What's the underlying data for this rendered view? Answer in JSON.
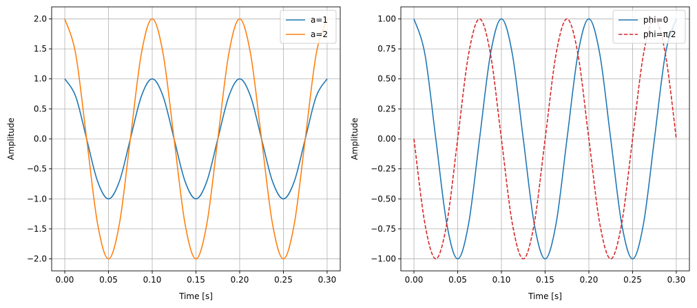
{
  "chart_data": [
    {
      "type": "line",
      "title": "",
      "xlabel": "Time [s]",
      "ylabel": "Amplitude",
      "xlim": [
        -0.015,
        0.315
      ],
      "ylim": [
        -2.2,
        2.2
      ],
      "xticks": [
        0.0,
        0.05,
        0.1,
        0.15,
        0.2,
        0.25,
        0.3
      ],
      "xtick_labels": [
        "0.00",
        "0.05",
        "0.10",
        "0.15",
        "0.20",
        "0.25",
        "0.30"
      ],
      "yticks": [
        -2.0,
        -1.5,
        -1.0,
        -0.5,
        0.0,
        0.5,
        1.0,
        1.5,
        2.0
      ],
      "ytick_labels": [
        "−2.0",
        "−1.5",
        "−1.0",
        "−0.5",
        "0.0",
        "0.5",
        "1.0",
        "1.5",
        "2.0"
      ],
      "grid": true,
      "legend_position": "top-right",
      "series": [
        {
          "name": "a=1",
          "color": "#1f77b4",
          "dash": "solid",
          "x": [
            0.0,
            0.0125,
            0.025,
            0.0375,
            0.05,
            0.0625,
            0.075,
            0.0875,
            0.1,
            0.1125,
            0.125,
            0.1375,
            0.15,
            0.1625,
            0.175,
            0.1875,
            0.2,
            0.2125,
            0.225,
            0.2375,
            0.25,
            0.2625,
            0.275,
            0.2875,
            0.3
          ],
          "y": [
            1.0,
            0.707,
            0.0,
            -0.707,
            -1.0,
            -0.707,
            0.0,
            0.707,
            1.0,
            0.707,
            0.0,
            -0.707,
            -1.0,
            -0.707,
            0.0,
            0.707,
            1.0,
            0.707,
            0.0,
            -0.707,
            -1.0,
            -0.707,
            0.0,
            0.707,
            1.0
          ]
        },
        {
          "name": "a=2",
          "color": "#ff7f0e",
          "dash": "solid",
          "x": [
            0.0,
            0.0125,
            0.025,
            0.0375,
            0.05,
            0.0625,
            0.075,
            0.0875,
            0.1,
            0.1125,
            0.125,
            0.1375,
            0.15,
            0.1625,
            0.175,
            0.1875,
            0.2,
            0.2125,
            0.225,
            0.2375,
            0.25,
            0.2625,
            0.275,
            0.2875,
            0.3
          ],
          "y": [
            2.0,
            1.414,
            0.0,
            -1.414,
            -2.0,
            -1.414,
            0.0,
            1.414,
            2.0,
            1.414,
            0.0,
            -1.414,
            -2.0,
            -1.414,
            0.0,
            1.414,
            2.0,
            1.414,
            0.0,
            -1.414,
            -2.0,
            -1.414,
            0.0,
            1.414,
            2.0
          ]
        }
      ]
    },
    {
      "type": "line",
      "title": "",
      "xlabel": "Time [s]",
      "ylabel": "Amplitude",
      "xlim": [
        -0.015,
        0.315
      ],
      "ylim": [
        -1.1,
        1.1
      ],
      "xticks": [
        0.0,
        0.05,
        0.1,
        0.15,
        0.2,
        0.25,
        0.3
      ],
      "xtick_labels": [
        "0.00",
        "0.05",
        "0.10",
        "0.15",
        "0.20",
        "0.25",
        "0.30"
      ],
      "yticks": [
        -1.0,
        -0.75,
        -0.5,
        -0.25,
        0.0,
        0.25,
        0.5,
        0.75,
        1.0
      ],
      "ytick_labels": [
        "−1.00",
        "−0.75",
        "−0.50",
        "−0.25",
        "0.00",
        "0.25",
        "0.50",
        "0.75",
        "1.00"
      ],
      "grid": true,
      "legend_position": "top-right",
      "series": [
        {
          "name": "phi=0",
          "color": "#1f77b4",
          "dash": "solid",
          "x": [
            0.0,
            0.0125,
            0.025,
            0.0375,
            0.05,
            0.0625,
            0.075,
            0.0875,
            0.1,
            0.1125,
            0.125,
            0.1375,
            0.15,
            0.1625,
            0.175,
            0.1875,
            0.2,
            0.2125,
            0.225,
            0.2375,
            0.25,
            0.2625,
            0.275,
            0.2875,
            0.3
          ],
          "y": [
            1.0,
            0.707,
            0.0,
            -0.707,
            -1.0,
            -0.707,
            0.0,
            0.707,
            1.0,
            0.707,
            0.0,
            -0.707,
            -1.0,
            -0.707,
            0.0,
            0.707,
            1.0,
            0.707,
            0.0,
            -0.707,
            -1.0,
            -0.707,
            0.0,
            0.707,
            1.0
          ]
        },
        {
          "name": "phi=π/2",
          "color": "#d62728",
          "dash": "dashed",
          "x": [
            0.0,
            0.0125,
            0.025,
            0.0375,
            0.05,
            0.0625,
            0.075,
            0.0875,
            0.1,
            0.1125,
            0.125,
            0.1375,
            0.15,
            0.1625,
            0.175,
            0.1875,
            0.2,
            0.2125,
            0.225,
            0.2375,
            0.25,
            0.2625,
            0.275,
            0.2875,
            0.3
          ],
          "y": [
            0.0,
            -0.707,
            -1.0,
            -0.707,
            0.0,
            0.707,
            1.0,
            0.707,
            0.0,
            -0.707,
            -1.0,
            -0.707,
            0.0,
            0.707,
            1.0,
            0.707,
            0.0,
            -0.707,
            -1.0,
            -0.707,
            0.0,
            0.707,
            1.0,
            0.707,
            0.0
          ]
        }
      ]
    }
  ]
}
